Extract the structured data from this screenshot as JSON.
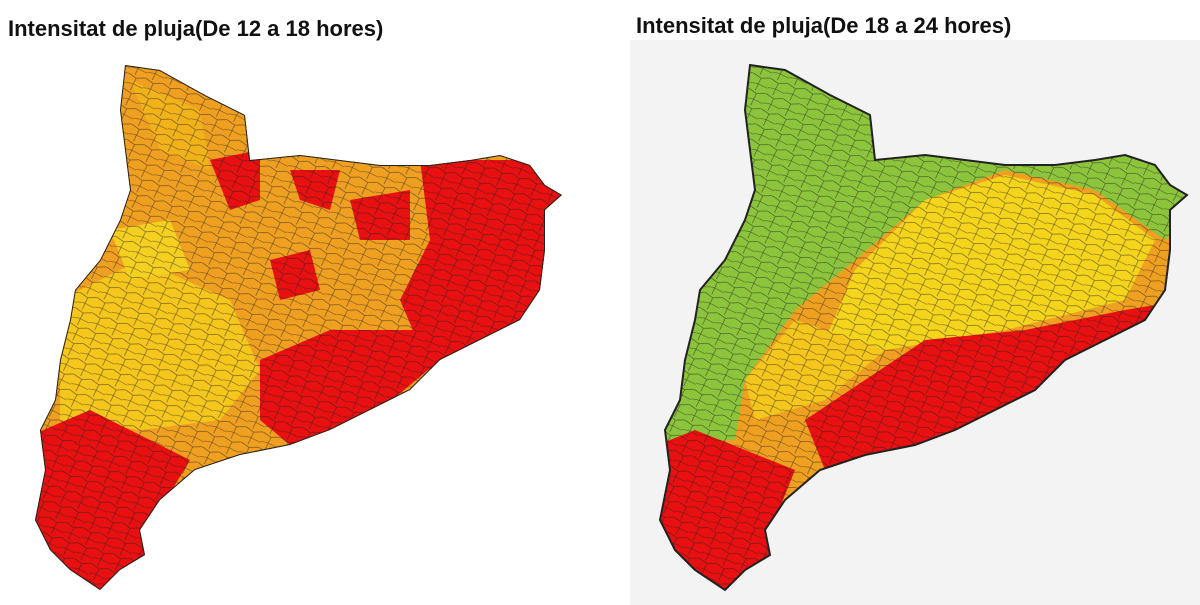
{
  "maps": [
    {
      "title": "Intensitat de pluja(De 12 a 18 hores)"
    },
    {
      "title": "Intensitat de pluja(De 18 a 24 hores)"
    }
  ]
}
